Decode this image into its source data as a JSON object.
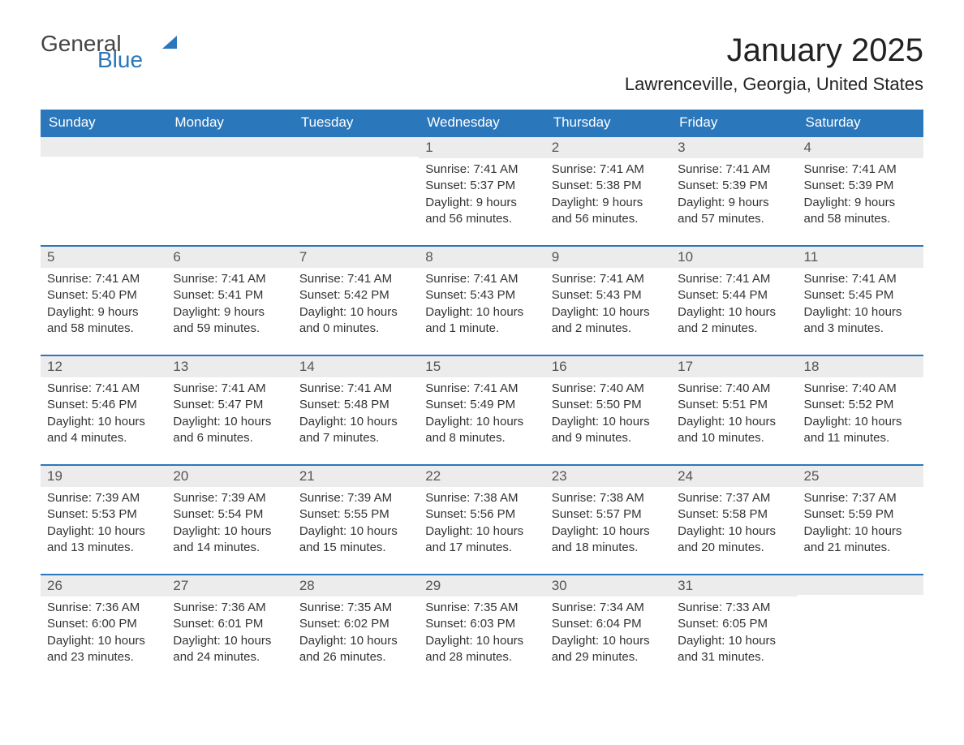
{
  "brand": {
    "text1": "General",
    "text2": "Blue",
    "accent": "#2a77bc",
    "gray": "#555555"
  },
  "header": {
    "month_title": "January 2025",
    "location": "Lawrenceville, Georgia, United States"
  },
  "colors": {
    "header_bg": "#2a77bc",
    "header_text": "#ffffff",
    "row_divider": "#2a77bc",
    "daynum_bg": "#ececec",
    "daynum_text": "#555555",
    "body_text": "#333333",
    "page_bg": "#ffffff"
  },
  "typography": {
    "month_title_fontsize": 40,
    "location_fontsize": 22,
    "dow_fontsize": 17,
    "daynum_fontsize": 17,
    "body_fontsize": 15
  },
  "calendar": {
    "type": "table",
    "columns": [
      "Sunday",
      "Monday",
      "Tuesday",
      "Wednesday",
      "Thursday",
      "Friday",
      "Saturday"
    ],
    "weeks": [
      [
        {
          "day": "",
          "sunrise": "",
          "sunset": "",
          "daylight": ""
        },
        {
          "day": "",
          "sunrise": "",
          "sunset": "",
          "daylight": ""
        },
        {
          "day": "",
          "sunrise": "",
          "sunset": "",
          "daylight": ""
        },
        {
          "day": "1",
          "sunrise": "Sunrise: 7:41 AM",
          "sunset": "Sunset: 5:37 PM",
          "daylight": "Daylight: 9 hours and 56 minutes."
        },
        {
          "day": "2",
          "sunrise": "Sunrise: 7:41 AM",
          "sunset": "Sunset: 5:38 PM",
          "daylight": "Daylight: 9 hours and 56 minutes."
        },
        {
          "day": "3",
          "sunrise": "Sunrise: 7:41 AM",
          "sunset": "Sunset: 5:39 PM",
          "daylight": "Daylight: 9 hours and 57 minutes."
        },
        {
          "day": "4",
          "sunrise": "Sunrise: 7:41 AM",
          "sunset": "Sunset: 5:39 PM",
          "daylight": "Daylight: 9 hours and 58 minutes."
        }
      ],
      [
        {
          "day": "5",
          "sunrise": "Sunrise: 7:41 AM",
          "sunset": "Sunset: 5:40 PM",
          "daylight": "Daylight: 9 hours and 58 minutes."
        },
        {
          "day": "6",
          "sunrise": "Sunrise: 7:41 AM",
          "sunset": "Sunset: 5:41 PM",
          "daylight": "Daylight: 9 hours and 59 minutes."
        },
        {
          "day": "7",
          "sunrise": "Sunrise: 7:41 AM",
          "sunset": "Sunset: 5:42 PM",
          "daylight": "Daylight: 10 hours and 0 minutes."
        },
        {
          "day": "8",
          "sunrise": "Sunrise: 7:41 AM",
          "sunset": "Sunset: 5:43 PM",
          "daylight": "Daylight: 10 hours and 1 minute."
        },
        {
          "day": "9",
          "sunrise": "Sunrise: 7:41 AM",
          "sunset": "Sunset: 5:43 PM",
          "daylight": "Daylight: 10 hours and 2 minutes."
        },
        {
          "day": "10",
          "sunrise": "Sunrise: 7:41 AM",
          "sunset": "Sunset: 5:44 PM",
          "daylight": "Daylight: 10 hours and 2 minutes."
        },
        {
          "day": "11",
          "sunrise": "Sunrise: 7:41 AM",
          "sunset": "Sunset: 5:45 PM",
          "daylight": "Daylight: 10 hours and 3 minutes."
        }
      ],
      [
        {
          "day": "12",
          "sunrise": "Sunrise: 7:41 AM",
          "sunset": "Sunset: 5:46 PM",
          "daylight": "Daylight: 10 hours and 4 minutes."
        },
        {
          "day": "13",
          "sunrise": "Sunrise: 7:41 AM",
          "sunset": "Sunset: 5:47 PM",
          "daylight": "Daylight: 10 hours and 6 minutes."
        },
        {
          "day": "14",
          "sunrise": "Sunrise: 7:41 AM",
          "sunset": "Sunset: 5:48 PM",
          "daylight": "Daylight: 10 hours and 7 minutes."
        },
        {
          "day": "15",
          "sunrise": "Sunrise: 7:41 AM",
          "sunset": "Sunset: 5:49 PM",
          "daylight": "Daylight: 10 hours and 8 minutes."
        },
        {
          "day": "16",
          "sunrise": "Sunrise: 7:40 AM",
          "sunset": "Sunset: 5:50 PM",
          "daylight": "Daylight: 10 hours and 9 minutes."
        },
        {
          "day": "17",
          "sunrise": "Sunrise: 7:40 AM",
          "sunset": "Sunset: 5:51 PM",
          "daylight": "Daylight: 10 hours and 10 minutes."
        },
        {
          "day": "18",
          "sunrise": "Sunrise: 7:40 AM",
          "sunset": "Sunset: 5:52 PM",
          "daylight": "Daylight: 10 hours and 11 minutes."
        }
      ],
      [
        {
          "day": "19",
          "sunrise": "Sunrise: 7:39 AM",
          "sunset": "Sunset: 5:53 PM",
          "daylight": "Daylight: 10 hours and 13 minutes."
        },
        {
          "day": "20",
          "sunrise": "Sunrise: 7:39 AM",
          "sunset": "Sunset: 5:54 PM",
          "daylight": "Daylight: 10 hours and 14 minutes."
        },
        {
          "day": "21",
          "sunrise": "Sunrise: 7:39 AM",
          "sunset": "Sunset: 5:55 PM",
          "daylight": "Daylight: 10 hours and 15 minutes."
        },
        {
          "day": "22",
          "sunrise": "Sunrise: 7:38 AM",
          "sunset": "Sunset: 5:56 PM",
          "daylight": "Daylight: 10 hours and 17 minutes."
        },
        {
          "day": "23",
          "sunrise": "Sunrise: 7:38 AM",
          "sunset": "Sunset: 5:57 PM",
          "daylight": "Daylight: 10 hours and 18 minutes."
        },
        {
          "day": "24",
          "sunrise": "Sunrise: 7:37 AM",
          "sunset": "Sunset: 5:58 PM",
          "daylight": "Daylight: 10 hours and 20 minutes."
        },
        {
          "day": "25",
          "sunrise": "Sunrise: 7:37 AM",
          "sunset": "Sunset: 5:59 PM",
          "daylight": "Daylight: 10 hours and 21 minutes."
        }
      ],
      [
        {
          "day": "26",
          "sunrise": "Sunrise: 7:36 AM",
          "sunset": "Sunset: 6:00 PM",
          "daylight": "Daylight: 10 hours and 23 minutes."
        },
        {
          "day": "27",
          "sunrise": "Sunrise: 7:36 AM",
          "sunset": "Sunset: 6:01 PM",
          "daylight": "Daylight: 10 hours and 24 minutes."
        },
        {
          "day": "28",
          "sunrise": "Sunrise: 7:35 AM",
          "sunset": "Sunset: 6:02 PM",
          "daylight": "Daylight: 10 hours and 26 minutes."
        },
        {
          "day": "29",
          "sunrise": "Sunrise: 7:35 AM",
          "sunset": "Sunset: 6:03 PM",
          "daylight": "Daylight: 10 hours and 28 minutes."
        },
        {
          "day": "30",
          "sunrise": "Sunrise: 7:34 AM",
          "sunset": "Sunset: 6:04 PM",
          "daylight": "Daylight: 10 hours and 29 minutes."
        },
        {
          "day": "31",
          "sunrise": "Sunrise: 7:33 AM",
          "sunset": "Sunset: 6:05 PM",
          "daylight": "Daylight: 10 hours and 31 minutes."
        },
        {
          "day": "",
          "sunrise": "",
          "sunset": "",
          "daylight": ""
        }
      ]
    ]
  }
}
